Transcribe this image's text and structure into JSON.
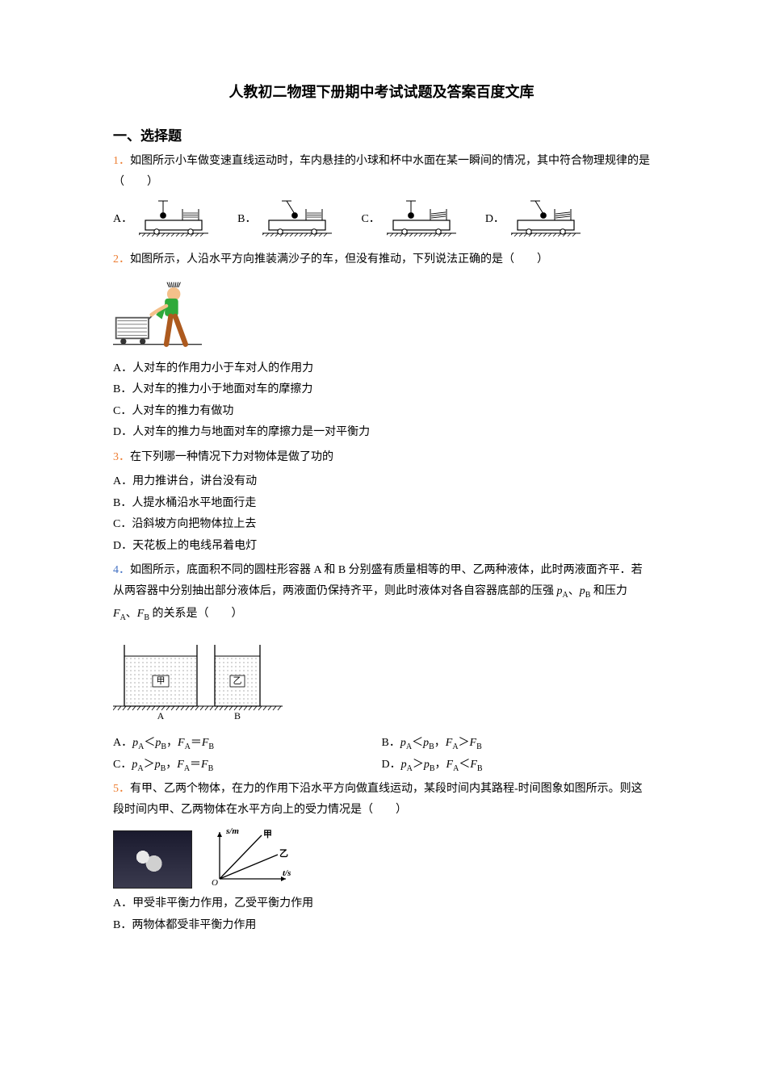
{
  "title": "人教初二物理下册期中考试试题及答案百度文库",
  "section1": "一、选择题",
  "q1": {
    "num": "1．",
    "text": "如图所示小车做变速直线运动时，车内悬挂的小球和杯中水面在某一瞬间的情况，其中符合物理规律的是（　　）",
    "labels": {
      "a": "A．",
      "b": "B．",
      "c": "C．",
      "d": "D．"
    },
    "cart": {
      "body_fill": "#ffffff",
      "stroke": "#000000",
      "hatch_stroke": "#000000",
      "water_fill": "#ffffff"
    },
    "variants": {
      "a": {
        "ball_dx": 0,
        "water_tilt": 0
      },
      "b": {
        "ball_dx": 10,
        "water_tilt": 0
      },
      "c": {
        "ball_dx": 0,
        "water_tilt": -6
      },
      "d": {
        "ball_dx": 10,
        "water_tilt": -6
      }
    }
  },
  "q2": {
    "num": "2．",
    "text": "如图所示，人沿水平方向推装满沙子的车，但没有推动，下列说法正确的是（　　）",
    "opts": {
      "a": "A．人对车的作用力小于车对人的作用力",
      "b": "B．人对车的推力小于地面对车的摩擦力",
      "c": "C．人对车的推力有做功",
      "d": "D．人对车的推力与地面对车的摩擦力是一对平衡力"
    },
    "img": {
      "skin": "#f4c08a",
      "shirt": "#2faa3a",
      "pants": "#ad5a1e",
      "cart": "#555555",
      "wheel": "#333333"
    }
  },
  "q3": {
    "num": "3．",
    "text": "在下列哪一种情况下力对物体是做了功的",
    "opts": {
      "a": "A．用力推讲台，讲台没有动",
      "b": "B．人提水桶沿水平地面行走",
      "c": "C．沿斜坡方向把物体拉上去",
      "d": "D．天花板上的电线吊着电灯"
    }
  },
  "q4": {
    "num": "4．",
    "text_before": "如图所示，底面积不同的圆柱形容器 A 和 B 分别盛有质量相等的甲、乙两种液体，此时两液面齐平．若从两容器中分别抽出部分液体后，两液面仍保持齐平，则此时液体对各自容器底部的压强 ",
    "text_mid1": "、",
    "text_mid2": " 和压力 ",
    "text_mid3": "、",
    "text_after": " 的关系是（　　）",
    "p": "p",
    "F": "F",
    "subA": "A",
    "subB": "B",
    "fig": {
      "labelA": "甲",
      "labelB": "乙",
      "baseA": "A",
      "baseB": "B",
      "fill": "#dedede",
      "stroke": "#000000",
      "a_width": 90,
      "b_width": 56,
      "height": 68,
      "hatch_stroke": "#000000"
    },
    "opts": {
      "a1": "A．",
      "a2": "＜",
      "a3": "，",
      "a4": "＝",
      "b1": "B．",
      "b2": "＜",
      "b3": "，",
      "b4": "＞",
      "c1": "C．",
      "c2": "＞",
      "c3": "，",
      "c4": "＝",
      "d1": "D．",
      "d2": "＞",
      "d3": "，",
      "d4": "＜"
    }
  },
  "q5": {
    "num": "5．",
    "text": "有甲、乙两个物体，在力的作用下沿水平方向做直线运动，某段时间内其路程-时间图象如图所示。则这段时间内甲、乙两物体在水平方向上的受力情况是（　　）",
    "graph": {
      "xlabel": "t/s",
      "ylabel": "s/m",
      "label_jia": "甲",
      "label_yi": "乙",
      "stroke": "#000000"
    },
    "opts": {
      "a": "A．甲受非平衡力作用，乙受平衡力作用",
      "b": "B．两物体都受非平衡力作用"
    }
  }
}
